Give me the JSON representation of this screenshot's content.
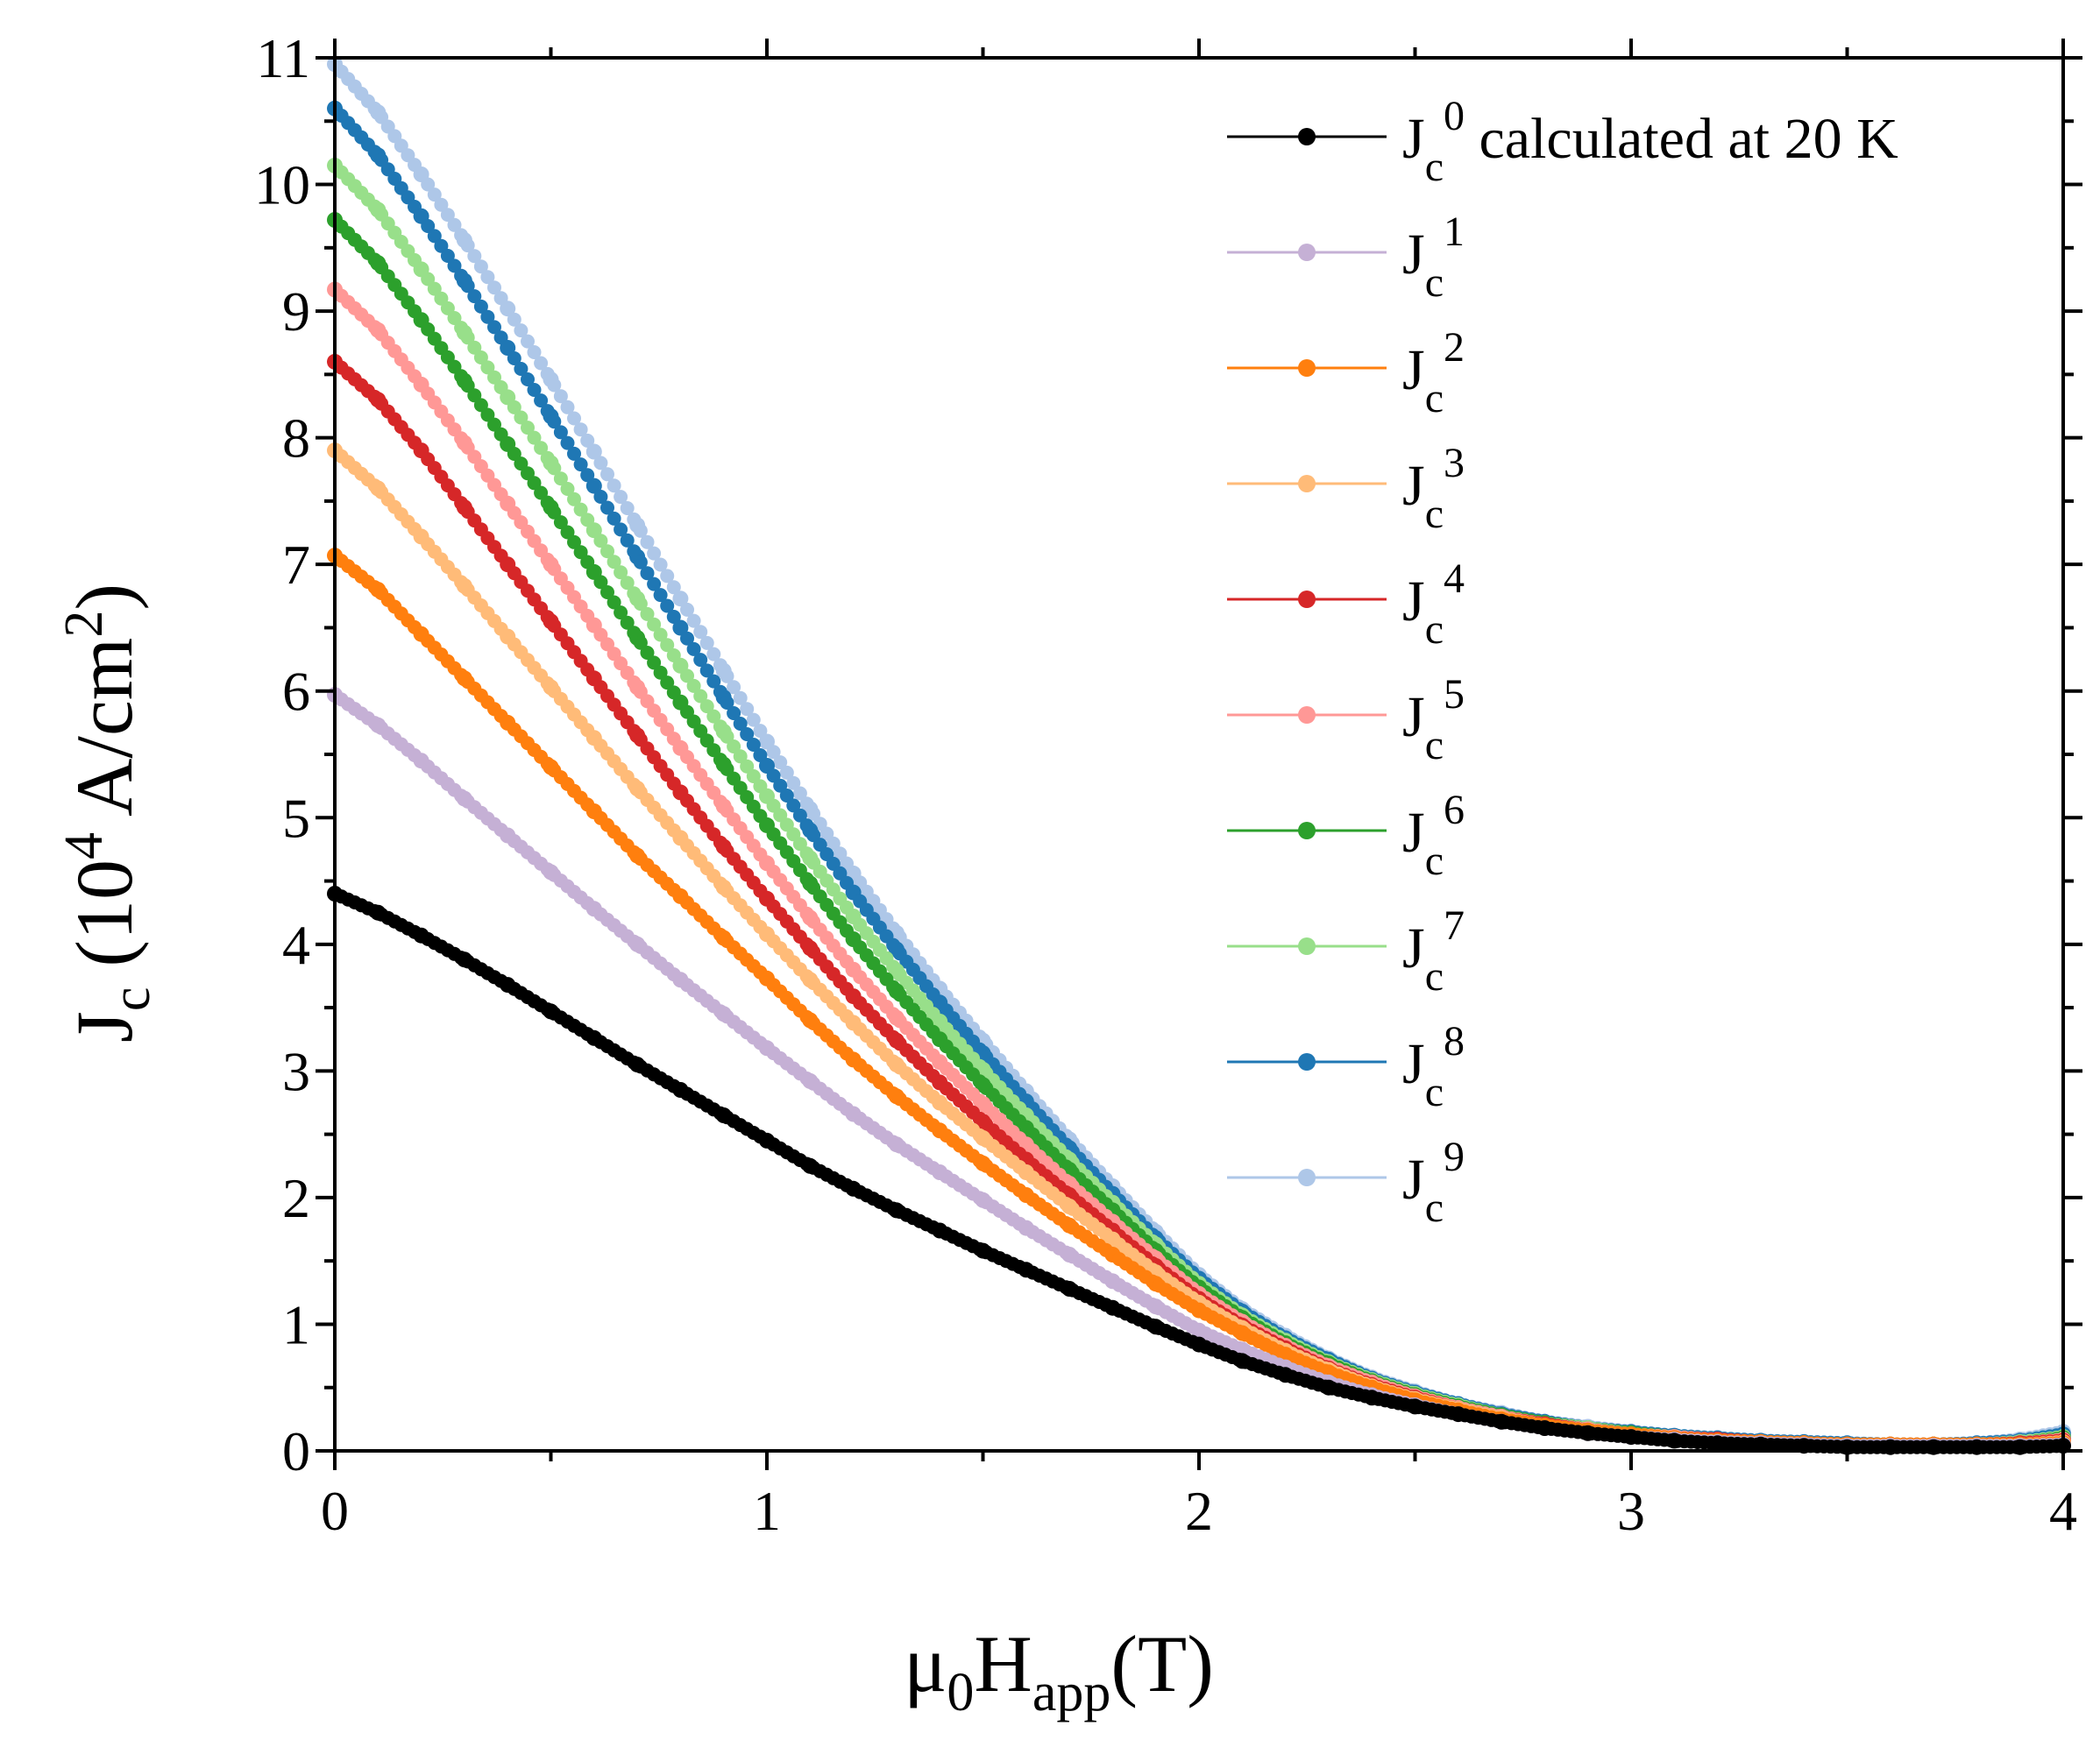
{
  "chart_data": {
    "type": "line",
    "xlabel": {
      "base": "μ",
      "sub1": "0",
      "mid": "H",
      "sub2": "app",
      "unit": "(T)"
    },
    "ylabel": {
      "base": "J",
      "sub": "c",
      "pre": " (10",
      "sup1": "4",
      "mid": " A/cm",
      "sup2": "2",
      "post": ")"
    },
    "xlim": [
      0,
      4
    ],
    "ylim": [
      0,
      11
    ],
    "xticks": [
      "0",
      "1",
      "2",
      "3",
      "4"
    ],
    "yticks": [
      "0",
      "1",
      "2",
      "3",
      "4",
      "5",
      "6",
      "7",
      "8",
      "9",
      "10",
      "11"
    ],
    "grid": false,
    "legend_position": "top-right",
    "x": [
      0,
      0.1,
      0.2,
      0.3,
      0.4,
      0.5,
      0.6,
      0.7,
      0.8,
      0.9,
      1.0,
      1.1,
      1.2,
      1.3,
      1.4,
      1.5,
      1.6,
      1.7,
      1.8,
      1.9,
      2.0,
      2.1,
      2.2,
      2.3,
      2.4,
      2.5,
      2.6,
      2.7,
      2.8,
      2.9,
      3.0,
      3.1,
      3.2,
      3.3,
      3.4,
      3.5,
      3.6,
      3.7,
      3.8,
      3.9,
      4.0
    ],
    "series": [
      {
        "name": "calculated at 20 K",
        "sup": "0",
        "color": "#000000",
        "values": [
          4.4,
          4.25,
          4.07,
          3.88,
          3.68,
          3.47,
          3.26,
          3.05,
          2.85,
          2.65,
          2.45,
          2.25,
          2.07,
          1.9,
          1.74,
          1.58,
          1.43,
          1.28,
          1.13,
          0.98,
          0.84,
          0.71,
          0.6,
          0.5,
          0.42,
          0.35,
          0.29,
          0.23,
          0.18,
          0.14,
          0.11,
          0.08,
          0.06,
          0.05,
          0.04,
          0.03,
          0.03,
          0.03,
          0.03,
          0.03,
          0.04
        ]
      },
      {
        "name": "",
        "sup": "1",
        "color": "#c5b0d5",
        "values": [
          5.97,
          5.73,
          5.45,
          5.15,
          4.86,
          4.57,
          4.28,
          4.0,
          3.72,
          3.45,
          3.18,
          2.92,
          2.66,
          2.42,
          2.2,
          1.98,
          1.76,
          1.55,
          1.34,
          1.14,
          0.95,
          0.8,
          0.66,
          0.54,
          0.44,
          0.36,
          0.29,
          0.23,
          0.18,
          0.14,
          0.11,
          0.09,
          0.07,
          0.06,
          0.05,
          0.04,
          0.04,
          0.04,
          0.04,
          0.04,
          0.05
        ]
      },
      {
        "name": "",
        "sup": "2",
        "color": "#ff7f0e",
        "values": [
          7.07,
          6.8,
          6.45,
          6.1,
          5.75,
          5.4,
          5.05,
          4.7,
          4.38,
          4.05,
          3.73,
          3.4,
          3.09,
          2.8,
          2.53,
          2.27,
          2.02,
          1.78,
          1.55,
          1.32,
          1.11,
          0.93,
          0.76,
          0.62,
          0.5,
          0.4,
          0.32,
          0.25,
          0.2,
          0.16,
          0.13,
          0.1,
          0.08,
          0.07,
          0.06,
          0.05,
          0.05,
          0.05,
          0.05,
          0.05,
          0.06
        ]
      },
      {
        "name": "",
        "sup": "3",
        "color": "#ffbb78",
        "values": [
          7.9,
          7.6,
          7.22,
          6.83,
          6.43,
          6.03,
          5.63,
          5.23,
          4.84,
          4.45,
          4.08,
          3.72,
          3.38,
          3.05,
          2.75,
          2.47,
          2.2,
          1.93,
          1.67,
          1.41,
          1.17,
          0.97,
          0.79,
          0.64,
          0.51,
          0.41,
          0.33,
          0.26,
          0.2,
          0.16,
          0.13,
          0.1,
          0.08,
          0.07,
          0.06,
          0.05,
          0.05,
          0.05,
          0.05,
          0.05,
          0.07
        ]
      },
      {
        "name": "",
        "sup": "4",
        "color": "#d62728",
        "values": [
          8.6,
          8.3,
          7.9,
          7.45,
          7.0,
          6.55,
          6.1,
          5.65,
          5.2,
          4.77,
          4.36,
          3.97,
          3.59,
          3.24,
          2.91,
          2.6,
          2.3,
          2.02,
          1.74,
          1.46,
          1.2,
          0.99,
          0.81,
          0.65,
          0.52,
          0.42,
          0.33,
          0.26,
          0.21,
          0.16,
          0.13,
          0.1,
          0.09,
          0.07,
          0.06,
          0.05,
          0.05,
          0.05,
          0.05,
          0.06,
          0.08
        ]
      },
      {
        "name": "",
        "sup": "5",
        "color": "#ff9896",
        "values": [
          9.17,
          8.85,
          8.42,
          7.96,
          7.48,
          7.0,
          6.52,
          6.03,
          5.55,
          5.09,
          4.64,
          4.21,
          3.8,
          3.42,
          3.07,
          2.74,
          2.42,
          2.11,
          1.81,
          1.52,
          1.24,
          1.02,
          0.83,
          0.67,
          0.54,
          0.43,
          0.34,
          0.27,
          0.21,
          0.17,
          0.13,
          0.11,
          0.09,
          0.07,
          0.06,
          0.05,
          0.05,
          0.05,
          0.05,
          0.06,
          0.09
        ]
      },
      {
        "name": "",
        "sup": "6",
        "color": "#2ca02c",
        "values": [
          9.72,
          9.38,
          8.93,
          8.45,
          7.95,
          7.45,
          6.94,
          6.42,
          5.91,
          5.42,
          4.94,
          4.48,
          4.04,
          3.63,
          3.25,
          2.89,
          2.55,
          2.22,
          1.9,
          1.58,
          1.29,
          1.05,
          0.85,
          0.69,
          0.55,
          0.44,
          0.35,
          0.28,
          0.22,
          0.17,
          0.14,
          0.11,
          0.09,
          0.07,
          0.06,
          0.05,
          0.05,
          0.05,
          0.05,
          0.06,
          0.1
        ]
      },
      {
        "name": "",
        "sup": "7",
        "color": "#98df8a",
        "values": [
          10.15,
          9.8,
          9.33,
          8.83,
          8.32,
          7.8,
          7.27,
          6.73,
          6.2,
          5.68,
          5.17,
          4.68,
          4.22,
          3.79,
          3.39,
          3.01,
          2.65,
          2.3,
          1.96,
          1.63,
          1.32,
          1.07,
          0.87,
          0.7,
          0.56,
          0.45,
          0.36,
          0.28,
          0.22,
          0.18,
          0.14,
          0.11,
          0.09,
          0.07,
          0.06,
          0.05,
          0.05,
          0.05,
          0.05,
          0.07,
          0.11
        ]
      },
      {
        "name": "",
        "sup": "8",
        "color": "#1f77b4",
        "values": [
          10.6,
          10.23,
          9.75,
          9.24,
          8.71,
          8.17,
          7.62,
          7.06,
          6.5,
          5.95,
          5.41,
          4.9,
          4.41,
          3.96,
          3.54,
          3.14,
          2.76,
          2.39,
          2.03,
          1.68,
          1.36,
          1.1,
          0.89,
          0.72,
          0.57,
          0.46,
          0.37,
          0.29,
          0.23,
          0.18,
          0.15,
          0.12,
          0.1,
          0.08,
          0.07,
          0.06,
          0.05,
          0.05,
          0.06,
          0.08,
          0.13
        ]
      },
      {
        "name": "",
        "sup": "9",
        "color": "#aec7e8",
        "values": [
          10.95,
          10.57,
          10.08,
          9.56,
          9.02,
          8.46,
          7.89,
          7.31,
          6.73,
          6.16,
          5.6,
          5.07,
          4.56,
          4.09,
          3.65,
          3.24,
          2.84,
          2.46,
          2.09,
          1.73,
          1.39,
          1.12,
          0.91,
          0.73,
          0.58,
          0.47,
          0.37,
          0.3,
          0.23,
          0.19,
          0.15,
          0.12,
          0.1,
          0.08,
          0.07,
          0.06,
          0.05,
          0.05,
          0.06,
          0.09,
          0.15
        ]
      }
    ],
    "legend_symbol": {
      "base": "J",
      "sub": "c"
    }
  }
}
